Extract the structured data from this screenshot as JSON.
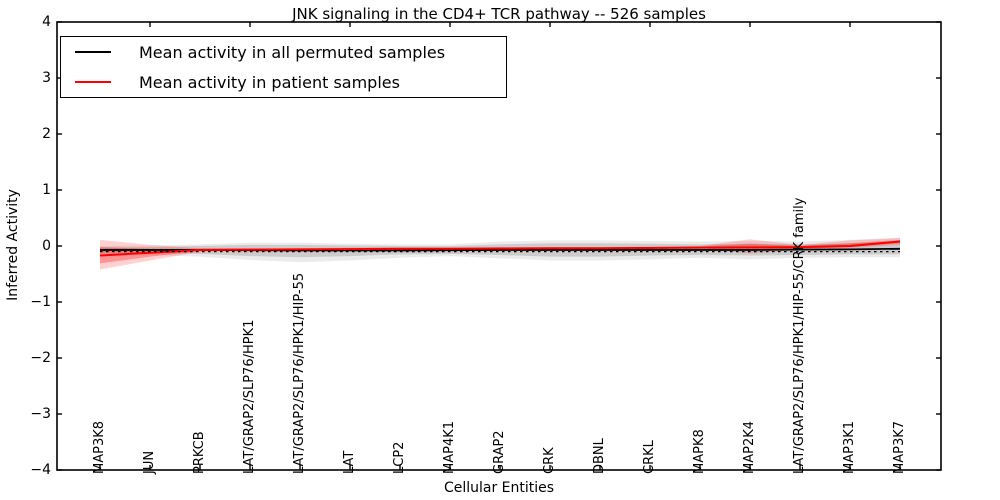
{
  "chart_data": {
    "type": "line",
    "title": "JNK signaling in the CD4+ TCR pathway -- 526 samples",
    "xlabel": "Cellular Entities",
    "ylabel": "Inferred Activity",
    "ylim": [
      -4,
      4
    ],
    "ytick_values": [
      4,
      3,
      2,
      1,
      0,
      -1,
      -2,
      -3,
      -4
    ],
    "ytick_labels": [
      "4",
      "3",
      "2",
      "1",
      "0",
      "−1",
      "−2",
      "−3",
      "−4"
    ],
    "grid": false,
    "legend_position": "upper left",
    "categories": [
      "MAP3K8",
      "JUN",
      "PRKCB",
      "LAT/GRAP2/SLP76/HPK1",
      "LAT/GRAP2/SLP76/HPK1/HIP-55",
      "LAT",
      "LCP2",
      "MAP4K1",
      "GRAP2",
      "CRK",
      "DBNL",
      "CRKL",
      "MAPK8",
      "MAP2K4",
      "LAT/GRAP2/SLP76/HPK1/HIP-55/CRK family",
      "MAP3K1",
      "MAP3K7"
    ],
    "series": [
      {
        "name": "Mean activity in all permuted samples",
        "color": "#000000",
        "line_style": "solid",
        "values": [
          -0.07,
          -0.07,
          -0.07,
          -0.075,
          -0.08,
          -0.08,
          -0.08,
          -0.075,
          -0.07,
          -0.07,
          -0.07,
          -0.07,
          -0.07,
          -0.07,
          -0.065,
          -0.06,
          -0.05
        ],
        "band_color": "#000000",
        "band_outer_alpha": 0.08,
        "band_inner_alpha": 0.13,
        "band_outer_upper": [
          0.0,
          0.01,
          0.03,
          0.06,
          0.06,
          0.04,
          0.03,
          0.03,
          0.08,
          0.1,
          0.1,
          0.09,
          0.08,
          0.09,
          0.08,
          0.11,
          0.15
        ],
        "band_outer_lower": [
          -0.14,
          -0.16,
          -0.19,
          -0.25,
          -0.29,
          -0.26,
          -0.21,
          -0.18,
          -0.22,
          -0.26,
          -0.26,
          -0.24,
          -0.21,
          -0.24,
          -0.21,
          -0.2,
          -0.2
        ],
        "band_inner_upper": [
          -0.03,
          -0.02,
          0.0,
          0.02,
          0.02,
          0.01,
          0.0,
          0.0,
          0.03,
          0.05,
          0.05,
          0.04,
          0.03,
          0.04,
          0.03,
          0.05,
          0.08
        ],
        "band_inner_lower": [
          -0.11,
          -0.12,
          -0.14,
          -0.18,
          -0.2,
          -0.18,
          -0.15,
          -0.14,
          -0.16,
          -0.19,
          -0.19,
          -0.17,
          -0.16,
          -0.17,
          -0.16,
          -0.15,
          -0.15
        ]
      },
      {
        "name": "Mean activity in patient samples",
        "color": "#ff0000",
        "line_style": "solid",
        "values": [
          -0.17,
          -0.12,
          -0.07,
          -0.065,
          -0.06,
          -0.055,
          -0.05,
          -0.05,
          -0.045,
          -0.04,
          -0.04,
          -0.035,
          -0.03,
          -0.025,
          -0.02,
          0.0,
          0.08
        ],
        "band_color": "#ff0000",
        "band_outer_alpha": 0.18,
        "band_inner_alpha": 0.3,
        "band_outer_upper": [
          0.11,
          0.02,
          -0.04,
          -0.04,
          -0.04,
          -0.03,
          -0.03,
          -0.03,
          -0.02,
          -0.02,
          -0.02,
          -0.01,
          0.0,
          0.12,
          0.02,
          0.1,
          0.14
        ],
        "band_outer_lower": [
          -0.42,
          -0.26,
          -0.1,
          -0.09,
          -0.08,
          -0.08,
          -0.07,
          -0.07,
          -0.07,
          -0.06,
          -0.06,
          -0.06,
          -0.06,
          -0.13,
          -0.07,
          -0.04,
          0.02
        ],
        "band_inner_upper": [
          -0.02,
          -0.05,
          -0.05,
          -0.05,
          -0.05,
          -0.04,
          -0.04,
          -0.04,
          -0.03,
          -0.03,
          -0.03,
          -0.02,
          -0.01,
          0.04,
          0.0,
          0.05,
          0.11
        ],
        "band_inner_lower": [
          -0.31,
          -0.19,
          -0.09,
          -0.08,
          -0.07,
          -0.07,
          -0.06,
          -0.06,
          -0.06,
          -0.05,
          -0.05,
          -0.05,
          -0.04,
          -0.09,
          -0.05,
          -0.02,
          0.05
        ]
      }
    ],
    "overlay_dashed": {
      "color": "#000000",
      "values": [
        -0.1,
        -0.1,
        -0.1,
        -0.1,
        -0.1,
        -0.1,
        -0.1,
        -0.1,
        -0.1,
        -0.1,
        -0.1,
        -0.1,
        -0.1,
        -0.1,
        -0.1,
        -0.1,
        -0.1
      ]
    }
  }
}
